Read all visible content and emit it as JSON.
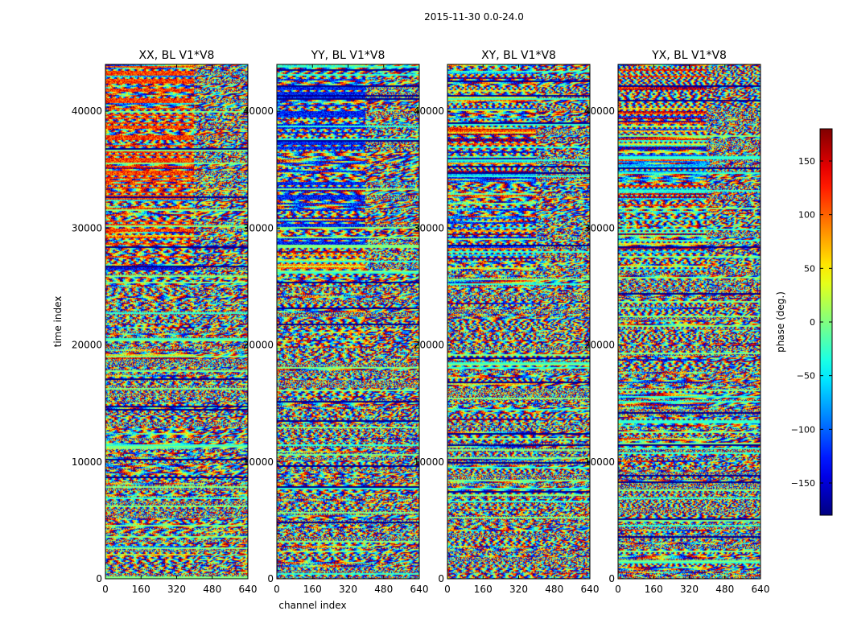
{
  "figure_title": "2015-11-30 0.0-24.0",
  "chart_data": [
    {
      "type": "heatmap",
      "title": "XX, BL V1*V8",
      "xlabel": "",
      "ylabel": "time index",
      "xlim": [
        0,
        640
      ],
      "ylim": [
        0,
        44000
      ],
      "x_ticks": [
        0,
        160,
        320,
        480,
        640
      ],
      "y_ticks": [
        0,
        10000,
        20000,
        30000,
        40000
      ],
      "value": "phase (deg.)"
    },
    {
      "type": "heatmap",
      "title": "YY, BL V1*V8",
      "xlabel": "channel index",
      "ylabel": "",
      "xlim": [
        0,
        640
      ],
      "ylim": [
        0,
        44000
      ],
      "x_ticks": [
        0,
        160,
        320,
        480,
        640
      ],
      "y_ticks": [
        0,
        10000,
        20000,
        30000,
        40000
      ],
      "value": "phase (deg.)"
    },
    {
      "type": "heatmap",
      "title": "XY, BL V1*V8",
      "xlabel": "",
      "ylabel": "",
      "xlim": [
        0,
        640
      ],
      "ylim": [
        0,
        44000
      ],
      "x_ticks": [
        0,
        160,
        320,
        480,
        640
      ],
      "y_ticks": [
        0,
        10000,
        20000,
        30000,
        40000
      ],
      "value": "phase (deg.)"
    },
    {
      "type": "heatmap",
      "title": "YX, BL V1*V8",
      "xlabel": "",
      "ylabel": "",
      "xlim": [
        0,
        640
      ],
      "ylim": [
        0,
        44000
      ],
      "x_ticks": [
        0,
        160,
        320,
        480,
        640
      ],
      "y_ticks": [
        0,
        10000,
        20000,
        30000,
        40000
      ],
      "value": "phase (deg.)"
    }
  ],
  "colorbar": {
    "label": "phase (deg.)",
    "range": [
      -180,
      180
    ],
    "ticks": [
      150,
      100,
      50,
      0,
      -50,
      -100,
      -150
    ],
    "tick_labels": [
      "150",
      "100",
      "50",
      "0",
      "−50",
      "−100",
      "−150"
    ],
    "colormap": "jet"
  }
}
